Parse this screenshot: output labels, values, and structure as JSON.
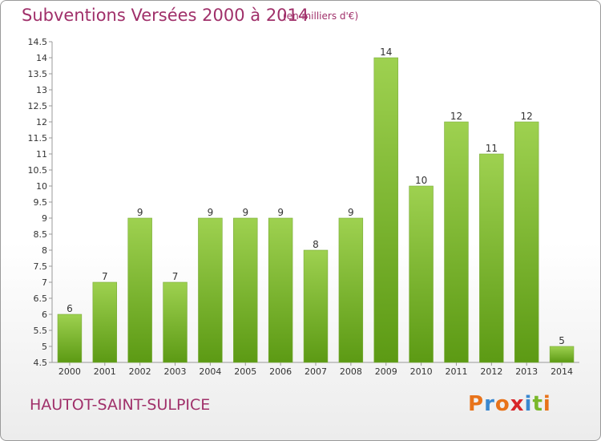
{
  "header": {
    "title": "Subventions Versées 2000 à 2014",
    "subtitle": "(en milliers d'€)"
  },
  "footer": {
    "commune": "HAUTOT-SAINT-SULPICE",
    "logo_text": "Proxiti"
  },
  "colors": {
    "title": "#a0306a",
    "bar_top": "#9ed150",
    "bar_bottom": "#5c9a14",
    "logo": [
      "#e8731a",
      "#3a88d0",
      "#e8731a",
      "#d8262a",
      "#3a88d0",
      "#7ab82a",
      "#e8731a"
    ]
  },
  "chart_data": {
    "type": "bar",
    "title": "Subventions Versées 2000 à 2014",
    "subtitle": "(en milliers d'€)",
    "categories": [
      "2000",
      "2001",
      "2002",
      "2003",
      "2004",
      "2005",
      "2006",
      "2007",
      "2008",
      "2009",
      "2010",
      "2011",
      "2012",
      "2013",
      "2014"
    ],
    "values": [
      6,
      7,
      9,
      7,
      9,
      9,
      9,
      8,
      9,
      14,
      10,
      12,
      11,
      12,
      5
    ],
    "value_labels": [
      "6",
      "7",
      "9",
      "7",
      "9",
      "9",
      "9",
      "8",
      "9",
      "14",
      "10",
      "12",
      "11",
      "12",
      "5"
    ],
    "ylim": [
      4.5,
      14.5
    ],
    "yticks": [
      4.5,
      5,
      5.5,
      6,
      6.5,
      7,
      7.5,
      8,
      8.5,
      9,
      9.5,
      10,
      10.5,
      11,
      11.5,
      12,
      12.5,
      13,
      13.5,
      14,
      14.5
    ],
    "ytick_labels": [
      "4.5",
      "5",
      "5.5",
      "6",
      "6.5",
      "7",
      "7.5",
      "8",
      "8.5",
      "9",
      "9.5",
      "10",
      "10.5",
      "11",
      "11.5",
      "12",
      "12.5",
      "13",
      "13.5",
      "14",
      "14.5"
    ],
    "xlabel": "",
    "ylabel": "",
    "grid": false,
    "legend": "none"
  }
}
